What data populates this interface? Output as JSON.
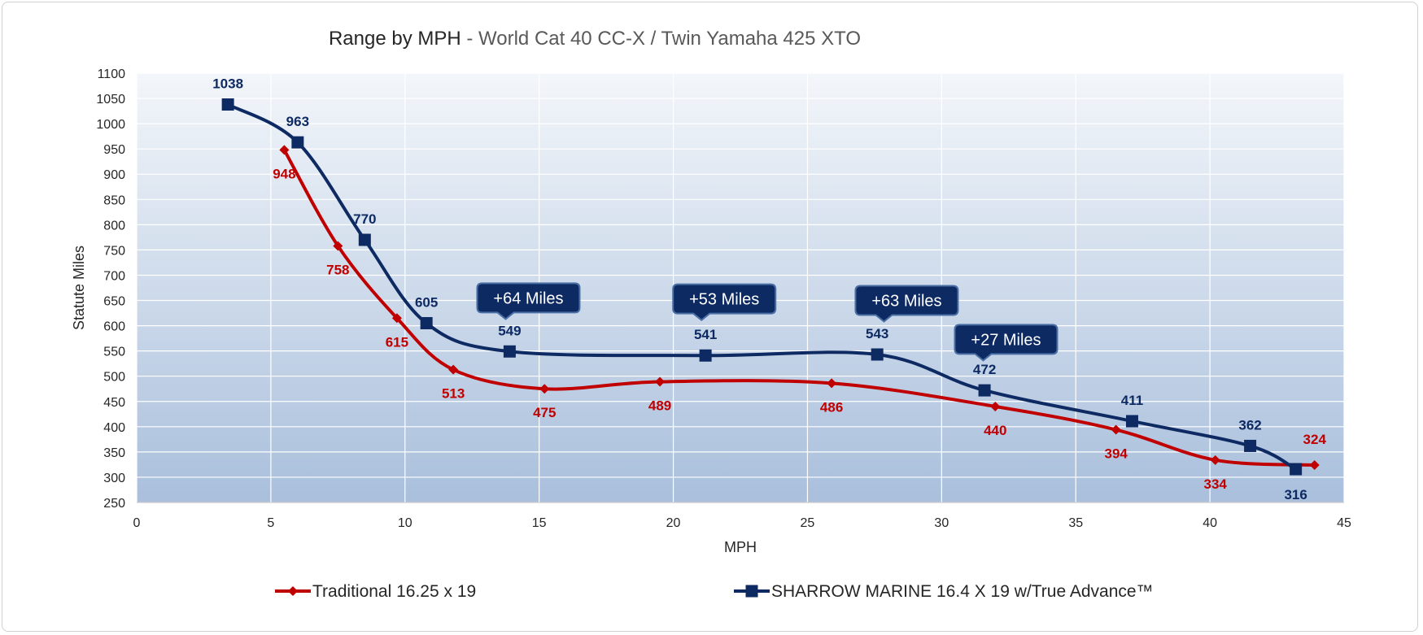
{
  "chart_data": {
    "type": "line",
    "title": "Range by MPH",
    "subtitle": " - World Cat 40 CC-X / Twin Yamaha 425 XTO",
    "xlabel": "MPH",
    "ylabel": "Statute Miles",
    "xlim": [
      0,
      45
    ],
    "ylim": [
      250,
      1100
    ],
    "x_ticks": [
      0,
      5,
      10,
      15,
      20,
      25,
      30,
      35,
      40,
      45
    ],
    "y_ticks": [
      250,
      300,
      350,
      400,
      450,
      500,
      550,
      600,
      650,
      700,
      750,
      800,
      850,
      900,
      950,
      1000,
      1050,
      1100
    ],
    "grid": true,
    "legend_position": "bottom",
    "series": [
      {
        "name": "Traditional 16.25 x 19",
        "color": "#C00000",
        "marker": "diamond",
        "x": [
          5.5,
          7.5,
          9.7,
          11.8,
          15.2,
          19.5,
          25.9,
          32.0,
          36.5,
          40.2,
          43.9
        ],
        "y": [
          948,
          758,
          615,
          513,
          475,
          489,
          486,
          440,
          394,
          334,
          324
        ],
        "labels": [
          "948",
          "758",
          "615",
          "513",
          "475",
          "489",
          "486",
          "440",
          "394",
          "334",
          "324"
        ]
      },
      {
        "name": "SHARROW MARINE 16.4 X 19 w/True Advance™",
        "color": "#0E2A63",
        "marker": "square",
        "x": [
          3.4,
          6.0,
          8.5,
          10.8,
          13.9,
          21.2,
          27.6,
          31.6,
          37.1,
          41.5,
          43.2
        ],
        "y": [
          1038,
          963,
          770,
          605,
          549,
          541,
          543,
          472,
          411,
          362,
          316
        ],
        "labels": [
          "1038",
          "963",
          "770",
          "605",
          "549",
          "541",
          "543",
          "472",
          "411",
          "362",
          "316"
        ]
      }
    ],
    "annotations": [
      {
        "text": "+64 Miles",
        "x": 14.6,
        "y": 655
      },
      {
        "text": "+53 Miles",
        "x": 21.9,
        "y": 653
      },
      {
        "text": "+63 Miles",
        "x": 28.7,
        "y": 650
      },
      {
        "text": "+27 Miles",
        "x": 32.4,
        "y": 573
      }
    ]
  }
}
